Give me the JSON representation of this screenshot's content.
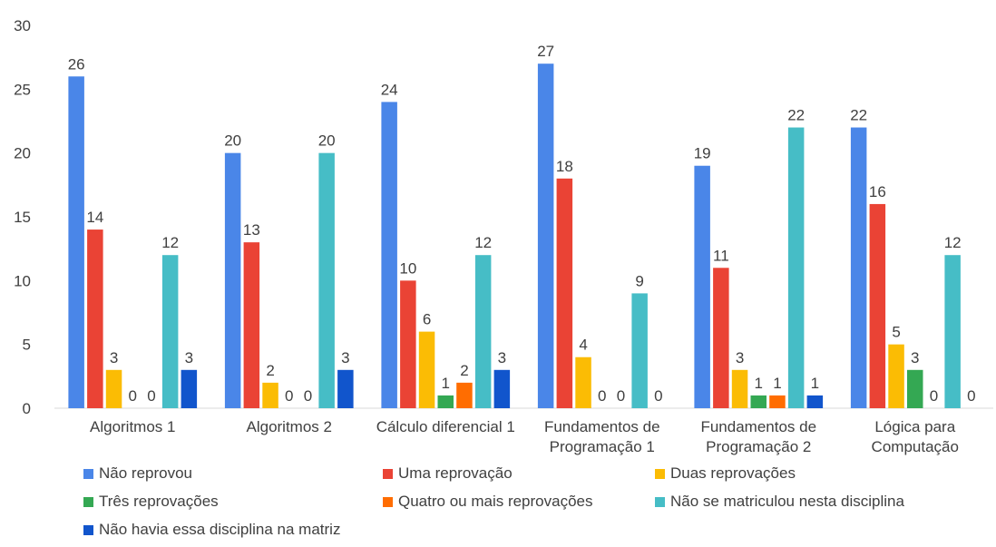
{
  "chart_data": {
    "type": "bar",
    "categories": [
      [
        "Algoritmos 1"
      ],
      [
        "Algoritmos 2"
      ],
      [
        "Cálculo diferencial 1"
      ],
      [
        "Fundamentos de",
        "Programação 1"
      ],
      [
        "Fundamentos de",
        "Programação 2"
      ],
      [
        "Lógica para",
        "Computação"
      ]
    ],
    "series": [
      {
        "name": "Não reprovou",
        "color": "#4a86e8",
        "values": [
          26,
          20,
          24,
          27,
          19,
          22
        ]
      },
      {
        "name": "Uma reprovação",
        "color": "#ea4335",
        "values": [
          14,
          13,
          10,
          18,
          11,
          16
        ]
      },
      {
        "name": "Duas reprovações",
        "color": "#fbbc04",
        "values": [
          3,
          2,
          6,
          4,
          3,
          5
        ]
      },
      {
        "name": "Três reprovações",
        "color": "#34a853",
        "values": [
          0,
          0,
          1,
          0,
          1,
          3
        ]
      },
      {
        "name": "Quatro ou mais reprovações",
        "color": "#ff6d01",
        "values": [
          0,
          0,
          2,
          0,
          1,
          0
        ]
      },
      {
        "name": "Não se matriculou nesta disciplina",
        "color": "#46bdc6",
        "values": [
          12,
          20,
          12,
          9,
          22,
          12
        ]
      },
      {
        "name": "Não havia essa disciplina na matriz",
        "color": "#1155cc",
        "values": [
          3,
          3,
          3,
          0,
          1,
          0
        ]
      }
    ],
    "y_ticks": [
      0,
      5,
      10,
      15,
      20,
      25,
      30
    ],
    "ylim": [
      0,
      30
    ],
    "grid": false,
    "legend_position": "bottom",
    "data_labels": [
      [
        "26",
        "14",
        "3",
        "0",
        "0",
        "12",
        "3"
      ],
      [
        "20",
        "13",
        "2",
        "0",
        "0",
        "20",
        "3"
      ],
      [
        "24",
        "10",
        "6",
        "1",
        "2",
        "12",
        "3"
      ],
      [
        "27",
        "18",
        "4",
        "0",
        "0",
        "9",
        "0"
      ],
      [
        "19",
        "11",
        "3",
        "1",
        "1",
        "22",
        "1"
      ],
      [
        "22",
        "16",
        "5",
        "3",
        "0",
        "12",
        "0"
      ]
    ]
  }
}
